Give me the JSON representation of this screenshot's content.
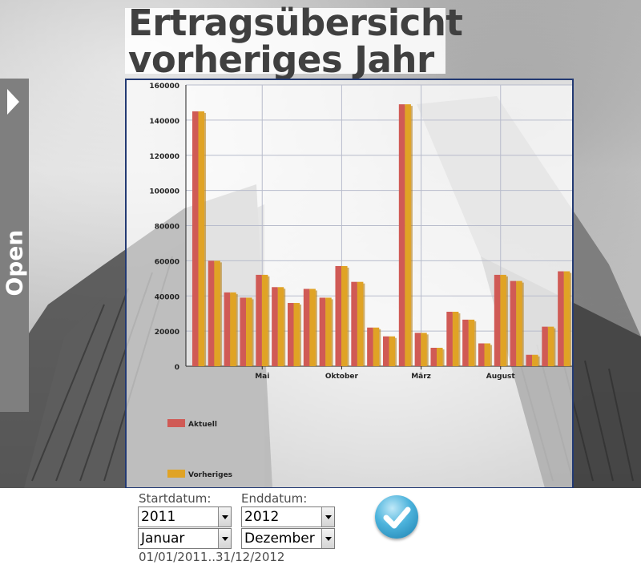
{
  "page": {
    "title_line1": "Ertragsübersicht",
    "title_line2": "vorheriges Jahr"
  },
  "side_panel": {
    "label": "Open"
  },
  "form": {
    "start_label": "Startdatum:",
    "end_label": "Enddatum:",
    "start_year": "2011",
    "end_year": "2012",
    "start_month": "Januar",
    "end_month": "Dezember",
    "range_text": "01/01/2011..31/12/2012",
    "submit_icon": "checkmark-icon"
  },
  "colors": {
    "aktuell": "#d05a55",
    "vorheriges": "#e0a325",
    "frame_border": "#233a73"
  },
  "chart_data": {
    "type": "bar",
    "title": "",
    "xlabel": "",
    "ylabel": "",
    "ylim": [
      0,
      160000
    ],
    "yticks": [
      0,
      20000,
      40000,
      60000,
      80000,
      100000,
      120000,
      140000,
      160000
    ],
    "xtick_labels": [
      {
        "label": "Mai",
        "index": 4
      },
      {
        "label": "Oktober",
        "index": 9
      },
      {
        "label": "März",
        "index": 14
      },
      {
        "label": "August",
        "index": 19
      }
    ],
    "grid": true,
    "legend_position": "bottom-left",
    "series": [
      {
        "name": "Aktuell",
        "values": [
          145000,
          60000,
          42000,
          39000,
          52000,
          45000,
          36000,
          44000,
          39000,
          57000,
          48000,
          22000,
          17000,
          149000,
          19000,
          10500,
          31000,
          26500,
          13000,
          52000,
          48500,
          6500,
          22500,
          54000
        ]
      },
      {
        "name": "Vorheriges",
        "values": [
          145000,
          60000,
          42000,
          39000,
          52000,
          45000,
          36000,
          44000,
          39000,
          57000,
          48000,
          22000,
          17000,
          149000,
          19000,
          10500,
          31000,
          26500,
          13000,
          52000,
          48500,
          6500,
          22500,
          54000
        ]
      }
    ]
  }
}
